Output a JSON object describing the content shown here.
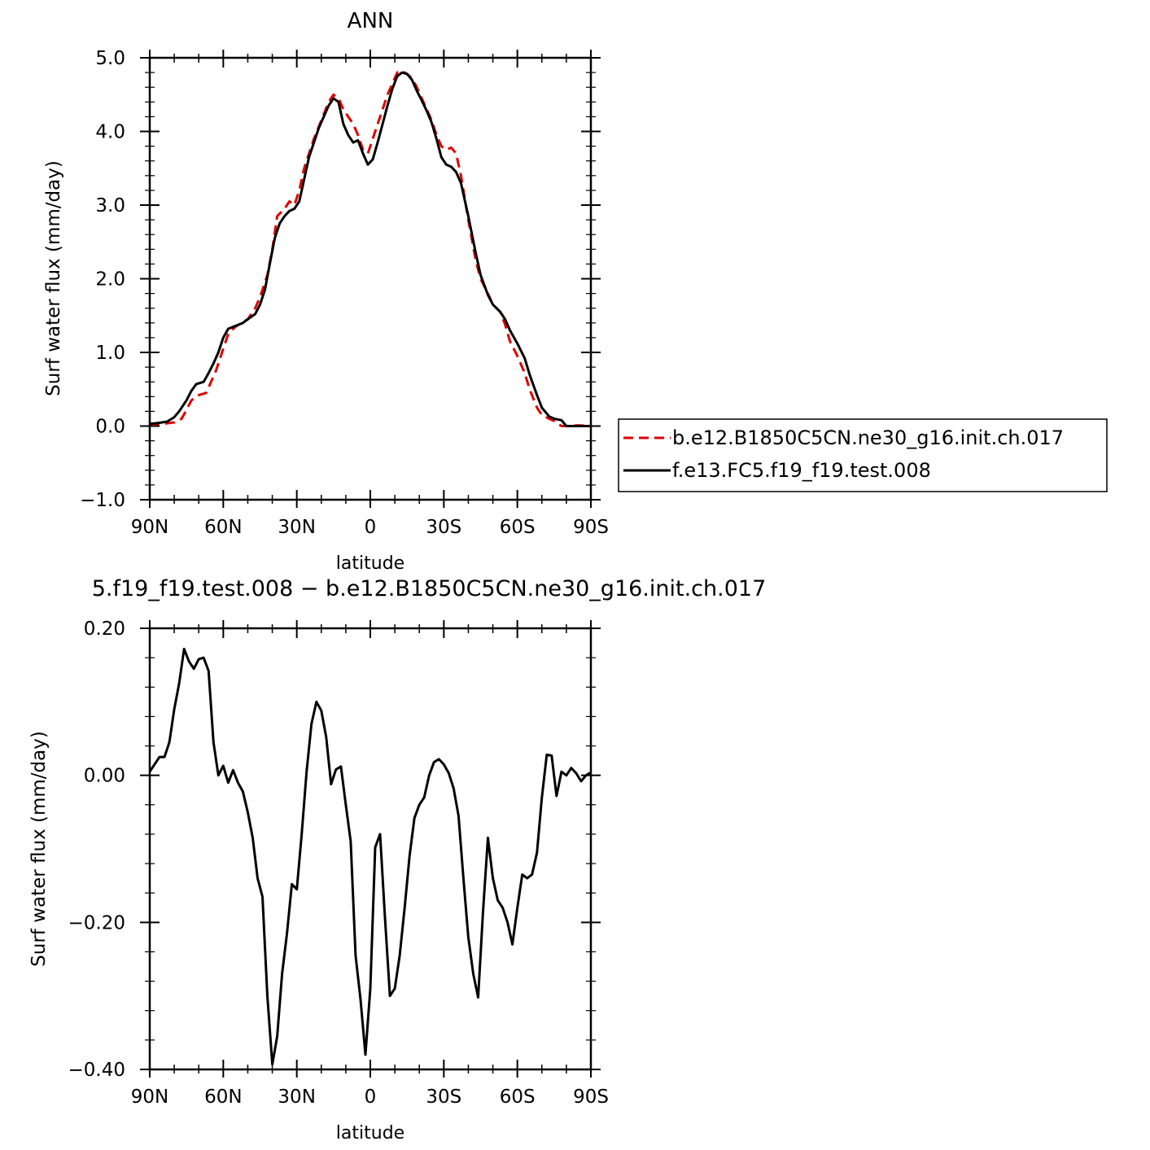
{
  "chart_data": [
    {
      "type": "line",
      "title": "ANN",
      "xlabel": "latitude",
      "ylabel": "Surf water flux (mm/day)",
      "xlim": [
        90,
        -90
      ],
      "ylim": [
        -1.0,
        5.0
      ],
      "x_ticks": [
        {
          "value": 90,
          "label": "90N"
        },
        {
          "value": 60,
          "label": "60N"
        },
        {
          "value": 30,
          "label": "30N"
        },
        {
          "value": 0,
          "label": "0"
        },
        {
          "value": -30,
          "label": "30S"
        },
        {
          "value": -60,
          "label": "60S"
        },
        {
          "value": -90,
          "label": "90S"
        }
      ],
      "y_ticks": [
        {
          "value": 5.0,
          "label": "5.0"
        },
        {
          "value": 4.0,
          "label": "4.0"
        },
        {
          "value": 3.0,
          "label": "3.0"
        },
        {
          "value": 2.0,
          "label": "2.0"
        },
        {
          "value": 1.0,
          "label": "1.0"
        },
        {
          "value": 0.0,
          "label": "0.0"
        },
        {
          "value": -1.0,
          "label": "−1.0"
        }
      ],
      "legend_position": "right",
      "series": [
        {
          "name": "b.e12.B1850C5CN.ne30_g16.init.ch.017",
          "color": "#e00000",
          "dash": "dashed",
          "x": [
            90,
            85,
            80,
            77,
            75,
            73,
            70,
            67,
            65,
            63,
            60,
            58,
            55,
            50,
            47,
            45,
            42,
            40,
            38,
            35,
            33,
            31,
            29,
            27,
            25,
            23,
            20,
            17,
            15,
            13,
            11,
            9,
            7,
            5,
            3,
            1,
            -1,
            -3,
            -5,
            -7,
            -9,
            -11,
            -13,
            -15,
            -17,
            -19,
            -21,
            -23,
            -25,
            -27,
            -29,
            -31,
            -33,
            -35,
            -37,
            -40,
            -43,
            -45,
            -48,
            -50,
            -53,
            -55,
            -57,
            -60,
            -63,
            -65,
            -68,
            -70,
            -73,
            -75,
            -78,
            -80,
            -85,
            -90
          ],
          "y": [
            0.02,
            0.03,
            0.05,
            0.1,
            0.22,
            0.35,
            0.42,
            0.45,
            0.6,
            0.75,
            1.05,
            1.25,
            1.35,
            1.45,
            1.6,
            1.75,
            2.05,
            2.4,
            2.85,
            2.95,
            3.05,
            3.0,
            3.2,
            3.5,
            3.7,
            3.9,
            4.15,
            4.4,
            4.5,
            4.45,
            4.3,
            4.2,
            4.1,
            3.95,
            3.75,
            3.7,
            3.9,
            4.1,
            4.3,
            4.5,
            4.65,
            4.8,
            4.82,
            4.78,
            4.72,
            4.6,
            4.45,
            4.3,
            4.15,
            3.95,
            3.8,
            3.75,
            3.78,
            3.7,
            3.4,
            2.8,
            2.25,
            2.0,
            1.8,
            1.65,
            1.55,
            1.38,
            1.15,
            0.95,
            0.72,
            0.5,
            0.25,
            0.15,
            0.1,
            0.07,
            0.0,
            0.0,
            0.01,
            0.0
          ]
        },
        {
          "name": "f.e13.FC5.f19_f19.test.008",
          "color": "#000000",
          "dash": "solid",
          "x": [
            90,
            87,
            83,
            80,
            78,
            75,
            73,
            71,
            68,
            66,
            64,
            62,
            60,
            58,
            55,
            52,
            50,
            47,
            45,
            43,
            41,
            39,
            37,
            35,
            33,
            31,
            29,
            27,
            25,
            23,
            21,
            19,
            17,
            15,
            13,
            11,
            9,
            7,
            5,
            3,
            1,
            -1,
            -3,
            -5,
            -7,
            -9,
            -11,
            -13,
            -15,
            -17,
            -19,
            -21,
            -23,
            -25,
            -27,
            -29,
            -31,
            -33,
            -35,
            -37,
            -40,
            -43,
            -45,
            -48,
            -50,
            -53,
            -55,
            -57,
            -60,
            -63,
            -65,
            -68,
            -70,
            -73,
            -75,
            -78,
            -80,
            -85,
            -90
          ],
          "y": [
            0.03,
            0.04,
            0.06,
            0.12,
            0.2,
            0.35,
            0.48,
            0.57,
            0.6,
            0.72,
            0.85,
            1.0,
            1.2,
            1.32,
            1.36,
            1.4,
            1.45,
            1.52,
            1.65,
            1.85,
            2.2,
            2.55,
            2.75,
            2.85,
            2.92,
            2.95,
            3.05,
            3.35,
            3.65,
            3.85,
            4.05,
            4.2,
            4.35,
            4.45,
            4.4,
            4.1,
            3.95,
            3.85,
            3.88,
            3.7,
            3.55,
            3.62,
            3.85,
            4.1,
            4.35,
            4.58,
            4.75,
            4.8,
            4.78,
            4.7,
            4.55,
            4.42,
            4.28,
            4.12,
            3.9,
            3.65,
            3.55,
            3.52,
            3.45,
            3.3,
            2.85,
            2.35,
            2.05,
            1.78,
            1.65,
            1.55,
            1.45,
            1.3,
            1.12,
            0.92,
            0.7,
            0.42,
            0.25,
            0.13,
            0.1,
            0.08,
            0.0,
            0.0,
            0.0
          ]
        }
      ]
    },
    {
      "type": "line",
      "title": "5.f19_f19.test.008 − b.e12.B1850C5CN.ne30_g16.init.ch.017",
      "xlabel": "latitude",
      "ylabel": "Surf water flux (mm/day)",
      "xlim": [
        90,
        -90
      ],
      "ylim": [
        -0.4,
        0.2
      ],
      "x_ticks": [
        {
          "value": 90,
          "label": "90N"
        },
        {
          "value": 60,
          "label": "60N"
        },
        {
          "value": 30,
          "label": "30N"
        },
        {
          "value": 0,
          "label": "0"
        },
        {
          "value": -30,
          "label": "30S"
        },
        {
          "value": -60,
          "label": "60S"
        },
        {
          "value": -90,
          "label": "90S"
        }
      ],
      "y_ticks": [
        {
          "value": 0.2,
          "label": "0.20"
        },
        {
          "value": 0.0,
          "label": "0.00"
        },
        {
          "value": -0.2,
          "label": "−0.20"
        },
        {
          "value": -0.4,
          "label": "−0.40"
        }
      ],
      "series": [
        {
          "color": "#000000",
          "dash": "solid",
          "x": [
            90,
            88,
            86,
            84,
            82,
            80,
            78,
            76,
            74,
            72,
            70,
            68,
            66,
            64,
            62,
            60,
            58,
            56,
            54,
            52,
            50,
            48,
            46,
            44,
            42,
            40,
            38,
            36,
            34,
            32,
            30,
            28,
            26,
            24,
            22,
            20,
            18,
            16,
            14,
            12,
            10,
            8,
            6,
            4,
            2,
            0,
            -2,
            -4,
            -6,
            -8,
            -10,
            -12,
            -14,
            -16,
            -18,
            -20,
            -22,
            -24,
            -26,
            -28,
            -30,
            -32,
            -34,
            -36,
            -38,
            -40,
            -42,
            -44,
            -46,
            -48,
            -50,
            -52,
            -54,
            -56,
            -58,
            -60,
            -62,
            -64,
            -66,
            -68,
            -70,
            -72,
            -74,
            -76,
            -78,
            -80,
            -82,
            -84,
            -86,
            -88,
            -90
          ],
          "y": [
            0.005,
            0.015,
            0.025,
            0.025,
            0.045,
            0.09,
            0.125,
            0.172,
            0.155,
            0.145,
            0.158,
            0.16,
            0.142,
            0.045,
            0.0,
            0.013,
            -0.01,
            0.007,
            -0.01,
            -0.022,
            -0.05,
            -0.085,
            -0.14,
            -0.165,
            -0.3,
            -0.393,
            -0.355,
            -0.27,
            -0.215,
            -0.148,
            -0.155,
            -0.08,
            0.005,
            0.07,
            0.1,
            0.088,
            0.052,
            -0.012,
            0.008,
            0.012,
            -0.04,
            -0.09,
            -0.245,
            -0.305,
            -0.38,
            -0.29,
            -0.098,
            -0.08,
            -0.195,
            -0.3,
            -0.29,
            -0.245,
            -0.18,
            -0.11,
            -0.058,
            -0.04,
            -0.03,
            0.0,
            0.018,
            0.022,
            0.015,
            0.003,
            -0.018,
            -0.055,
            -0.14,
            -0.22,
            -0.27,
            -0.302,
            -0.185,
            -0.085,
            -0.14,
            -0.17,
            -0.18,
            -0.2,
            -0.23,
            -0.18,
            -0.135,
            -0.14,
            -0.135,
            -0.105,
            -0.03,
            0.028,
            0.027,
            -0.028,
            0.005,
            0.0,
            0.01,
            0.003,
            -0.008,
            0.0,
            0.004
          ]
        }
      ]
    }
  ]
}
